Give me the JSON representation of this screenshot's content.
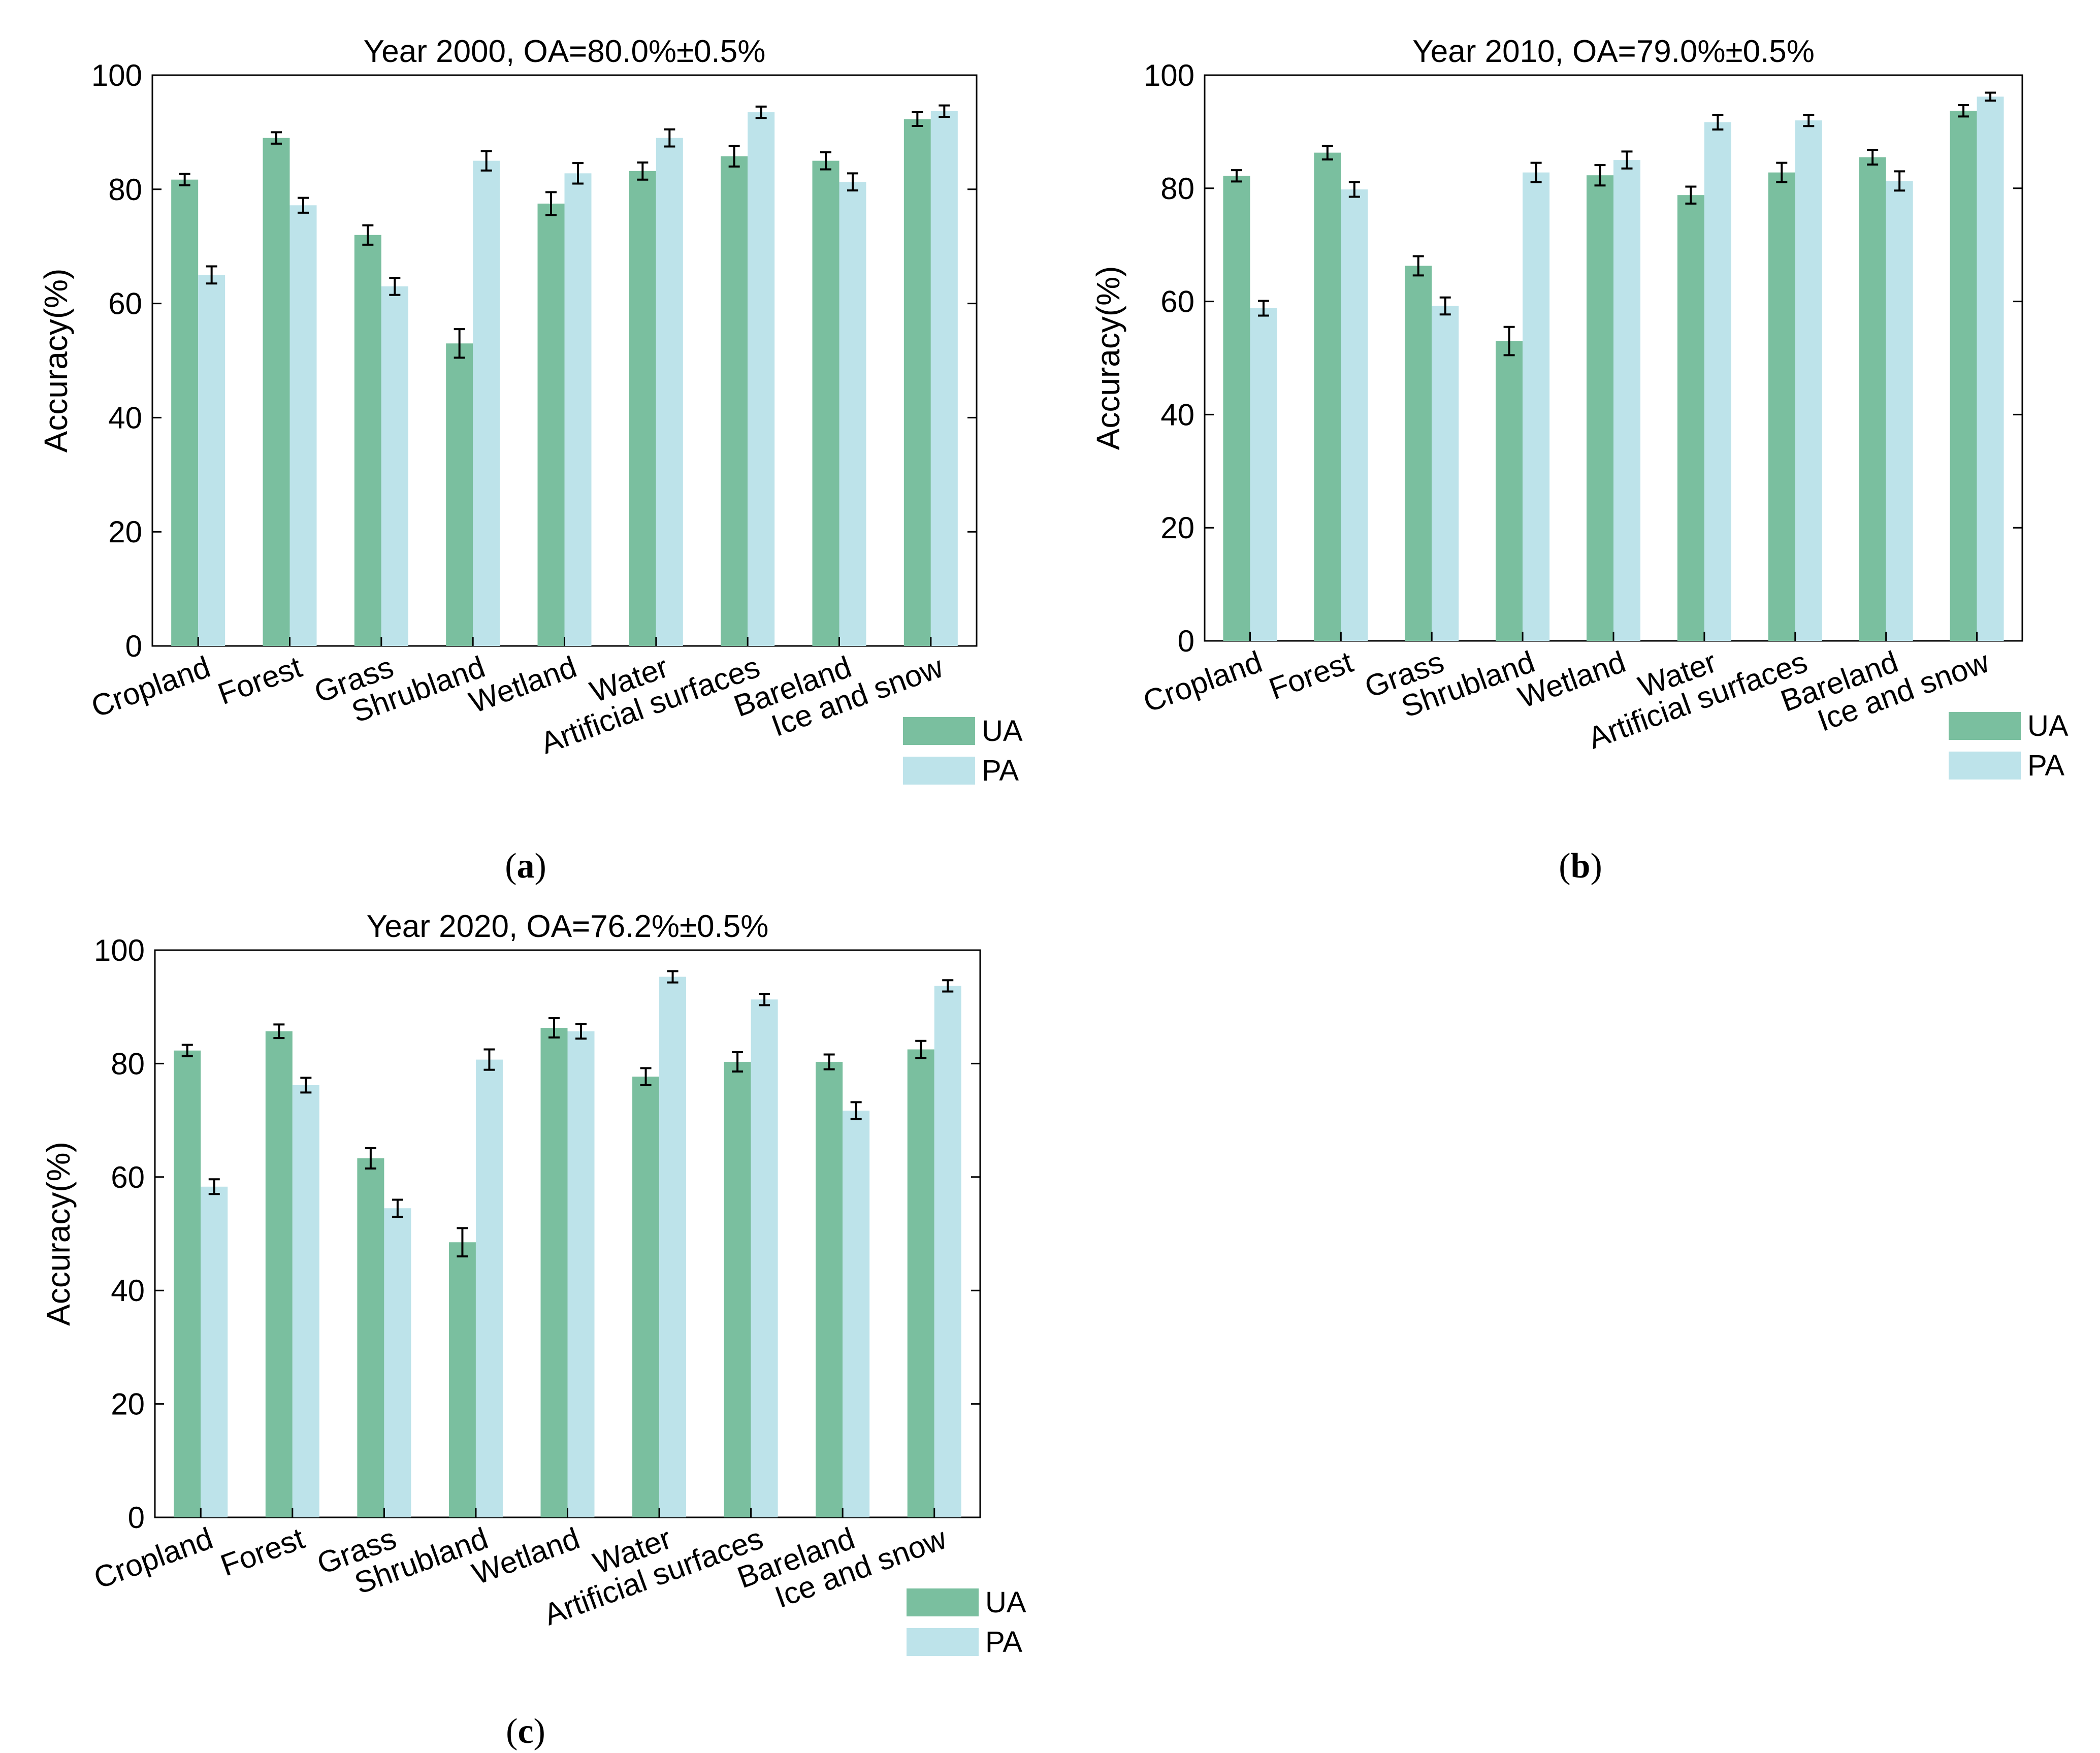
{
  "chart_data": [
    {
      "type": "bar",
      "title": "Year 2000, OA=80.0%±0.5%",
      "caption": "(a)",
      "caption_letter": "a",
      "xlabel": "",
      "ylabel": "Accuracy(%)",
      "ylim": [
        0,
        100
      ],
      "yticks": [
        0,
        20,
        40,
        60,
        80,
        100
      ],
      "grid": false,
      "legend_position": "bottom-right",
      "categories": [
        "Cropland",
        "Forest",
        "Grass",
        "Shrubland",
        "Wetland",
        "Water",
        "Artificial surfaces",
        "Bareland",
        "Ice and snow"
      ],
      "series": [
        {
          "name": "UA",
          "color": "#7abf9f",
          "values": [
            81.7,
            89.0,
            72.0,
            53.0,
            77.5,
            83.2,
            85.8,
            85.0,
            92.3
          ],
          "errors": [
            1.0,
            1.0,
            1.7,
            2.5,
            2.0,
            1.5,
            1.8,
            1.5,
            1.2
          ]
        },
        {
          "name": "PA",
          "color": "#bde3ea",
          "values": [
            65.0,
            77.2,
            63.0,
            85.0,
            82.8,
            89.0,
            93.5,
            81.3,
            93.7
          ],
          "errors": [
            1.5,
            1.3,
            1.5,
            1.7,
            1.8,
            1.5,
            1.0,
            1.5,
            1.0
          ]
        }
      ]
    },
    {
      "type": "bar",
      "title": "Year 2010, OA=79.0%±0.5%",
      "caption": "(b)",
      "caption_letter": "b",
      "xlabel": "",
      "ylabel": "Accuracy(%)",
      "ylim": [
        0,
        100
      ],
      "yticks": [
        0,
        20,
        40,
        60,
        80,
        100
      ],
      "grid": false,
      "legend_position": "bottom-right",
      "categories": [
        "Cropland",
        "Forest",
        "Grass",
        "Shrubland",
        "Wetland",
        "Water",
        "Artificial surfaces",
        "Bareland",
        "Ice and snow"
      ],
      "series": [
        {
          "name": "UA",
          "color": "#7abf9f",
          "values": [
            82.2,
            86.3,
            66.3,
            53.0,
            82.3,
            78.8,
            82.8,
            85.5,
            93.7
          ],
          "errors": [
            1.0,
            1.2,
            1.7,
            2.5,
            1.8,
            1.5,
            1.7,
            1.3,
            1.0
          ]
        },
        {
          "name": "PA",
          "color": "#bde3ea",
          "values": [
            58.8,
            79.8,
            59.2,
            82.8,
            85.0,
            91.7,
            92.0,
            81.3,
            96.2
          ],
          "errors": [
            1.3,
            1.3,
            1.5,
            1.7,
            1.5,
            1.3,
            1.0,
            1.7,
            0.7
          ]
        }
      ]
    },
    {
      "type": "bar",
      "title": "Year 2020, OA=76.2%±0.5%",
      "caption": "(c)",
      "caption_letter": "c",
      "xlabel": "",
      "ylabel": "Accuracy(%)",
      "ylim": [
        0,
        100
      ],
      "yticks": [
        0,
        20,
        40,
        60,
        80,
        100
      ],
      "grid": false,
      "legend_position": "bottom-right",
      "categories": [
        "Cropland",
        "Forest",
        "Grass",
        "Shrubland",
        "Wetland",
        "Water",
        "Artificial surfaces",
        "Bareland",
        "Ice and snow"
      ],
      "series": [
        {
          "name": "UA",
          "color": "#7abf9f",
          "values": [
            82.3,
            85.7,
            63.3,
            48.5,
            86.3,
            77.7,
            80.3,
            80.3,
            82.5
          ],
          "errors": [
            1.0,
            1.2,
            1.8,
            2.5,
            1.7,
            1.5,
            1.7,
            1.3,
            1.5
          ]
        },
        {
          "name": "PA",
          "color": "#bde3ea",
          "values": [
            58.3,
            76.2,
            54.5,
            80.7,
            85.7,
            95.3,
            91.3,
            71.7,
            93.7
          ],
          "errors": [
            1.3,
            1.3,
            1.5,
            1.8,
            1.3,
            1.0,
            1.0,
            1.5,
            1.0
          ]
        }
      ]
    }
  ]
}
